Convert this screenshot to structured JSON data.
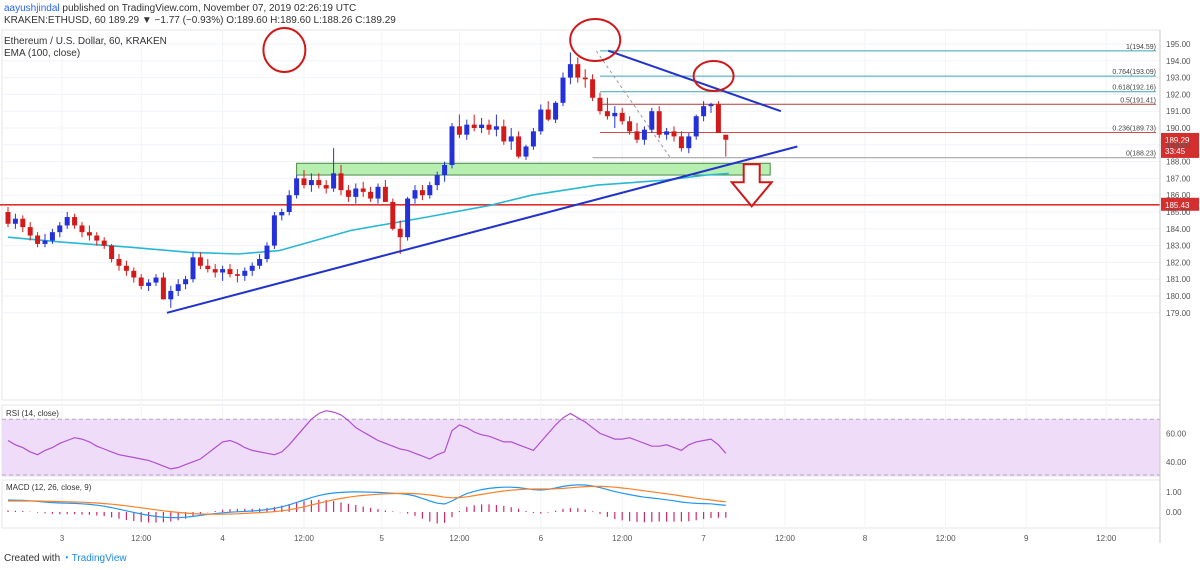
{
  "header": {
    "user": "aayushjindal",
    "published": "published on TradingView.com, November 07, 2019 02:26:19 UTC",
    "ticker": "KRAKEN:ETHUSD, 60",
    "change": "189.29 ▼ −1.77 (−0.93%)",
    "ohlc": "O:189.60 H:189.60 L:188.26 C:189.29"
  },
  "legend": {
    "title": "Ethereum / U.S. Dollar, 60, KRAKEN",
    "ema": "EMA (100, close)"
  },
  "footer": {
    "created_with": "Created with",
    "brand": "TradingView"
  },
  "colors": {
    "up": "#2431d9",
    "down": "#d21a1a",
    "ema": "#27b8d6",
    "trendline": "#2233cc",
    "support_zone": "#b7efb1",
    "horizontal": "#e03030",
    "rsi_band": "#efdcf9",
    "rsi_line": "#b14fd1",
    "macd": "#2196f3",
    "signal": "#ff7f27"
  },
  "chart_data": [
    {
      "type": "candlestick",
      "title": "Ethereum / U.S. Dollar, 60, KRAKEN",
      "ylim": [
        178,
        195.6
      ],
      "y_ticks": [
        "195.00",
        "194.00",
        "193.00",
        "192.00",
        "191.00",
        "190.00",
        "189.00",
        "188.00",
        "187.00",
        "186.00",
        "185.00",
        "184.00",
        "183.00",
        "182.00",
        "181.00",
        "180.00",
        "179.00"
      ],
      "x_ticks": [
        "3",
        "12:00",
        "4",
        "12:00",
        "5",
        "12:00",
        "6",
        "12:00",
        "7",
        "12:00",
        "8",
        "12:00",
        "9",
        "12:00"
      ],
      "ohlc": [
        [
          185.0,
          185.3,
          184.1,
          184.3
        ],
        [
          184.3,
          184.9,
          184.0,
          184.6
        ],
        [
          184.6,
          184.8,
          183.8,
          184.1
        ],
        [
          184.1,
          184.4,
          183.3,
          183.6
        ],
        [
          183.6,
          183.8,
          182.9,
          183.1
        ],
        [
          183.1,
          183.7,
          182.9,
          183.3
        ],
        [
          183.3,
          184.0,
          183.1,
          183.8
        ],
        [
          183.8,
          184.4,
          183.5,
          184.2
        ],
        [
          184.2,
          185.0,
          184.0,
          184.7
        ],
        [
          184.7,
          184.9,
          184.0,
          184.2
        ],
        [
          184.2,
          184.4,
          183.5,
          183.8
        ],
        [
          183.8,
          184.2,
          183.3,
          183.6
        ],
        [
          183.6,
          183.8,
          183.0,
          183.3
        ],
        [
          183.3,
          183.5,
          182.8,
          183.0
        ],
        [
          183.0,
          183.1,
          182.0,
          182.2
        ],
        [
          182.2,
          182.5,
          181.5,
          181.8
        ],
        [
          181.8,
          182.1,
          181.2,
          181.5
        ],
        [
          181.5,
          181.7,
          180.8,
          181.1
        ],
        [
          181.1,
          181.3,
          180.4,
          180.6
        ],
        [
          180.6,
          181.0,
          180.3,
          180.8
        ],
        [
          180.8,
          181.3,
          180.6,
          181.1
        ],
        [
          181.1,
          181.4,
          179.8,
          179.8
        ],
        [
          179.8,
          180.6,
          179.3,
          180.3
        ],
        [
          180.3,
          181.0,
          180.0,
          180.7
        ],
        [
          180.7,
          181.2,
          180.4,
          181.0
        ],
        [
          181.0,
          182.6,
          180.8,
          182.3
        ],
        [
          182.3,
          182.6,
          181.6,
          181.8
        ],
        [
          181.8,
          182.2,
          181.4,
          181.6
        ],
        [
          181.6,
          181.9,
          181.1,
          181.4
        ],
        [
          181.4,
          181.8,
          180.9,
          181.6
        ],
        [
          181.6,
          181.9,
          181.1,
          181.3
        ],
        [
          181.3,
          181.6,
          180.8,
          181.2
        ],
        [
          181.2,
          181.7,
          180.9,
          181.5
        ],
        [
          181.5,
          182.0,
          181.2,
          181.8
        ],
        [
          181.8,
          182.5,
          181.6,
          182.2
        ],
        [
          182.2,
          183.2,
          182.0,
          183.0
        ],
        [
          183.0,
          185.0,
          182.8,
          184.8
        ],
        [
          184.8,
          185.2,
          184.5,
          185.0
        ],
        [
          185.0,
          186.3,
          184.8,
          186.0
        ],
        [
          186.0,
          187.2,
          185.8,
          187.0
        ],
        [
          187.0,
          187.5,
          186.4,
          186.6
        ],
        [
          186.6,
          187.3,
          186.2,
          186.9
        ],
        [
          186.9,
          187.3,
          186.4,
          186.6
        ],
        [
          186.6,
          186.9,
          186.1,
          186.4
        ],
        [
          186.4,
          188.8,
          186.2,
          187.3
        ],
        [
          187.3,
          187.8,
          186.0,
          186.3
        ],
        [
          186.3,
          186.6,
          185.6,
          185.9
        ],
        [
          185.9,
          186.7,
          185.5,
          186.4
        ],
        [
          186.4,
          186.8,
          185.9,
          186.2
        ],
        [
          186.2,
          186.5,
          185.6,
          185.8
        ],
        [
          185.8,
          186.7,
          185.5,
          186.5
        ],
        [
          186.5,
          186.9,
          185.6,
          185.6
        ],
        [
          185.6,
          185.8,
          183.9,
          184.0
        ],
        [
          184.0,
          184.5,
          182.5,
          183.5
        ],
        [
          183.5,
          185.9,
          183.3,
          185.8
        ],
        [
          185.8,
          186.6,
          185.5,
          186.3
        ],
        [
          186.3,
          186.6,
          185.7,
          186.0
        ],
        [
          186.0,
          186.8,
          185.8,
          186.6
        ],
        [
          186.6,
          187.4,
          186.3,
          187.2
        ],
        [
          187.2,
          188.0,
          186.8,
          187.8
        ],
        [
          187.8,
          190.3,
          187.6,
          190.1
        ],
        [
          190.1,
          190.8,
          189.4,
          189.6
        ],
        [
          189.6,
          190.5,
          189.3,
          190.2
        ],
        [
          190.2,
          190.8,
          189.8,
          190.0
        ],
        [
          190.0,
          190.6,
          189.7,
          190.2
        ],
        [
          190.2,
          190.5,
          189.6,
          189.9
        ],
        [
          189.9,
          190.8,
          189.5,
          190.1
        ],
        [
          190.1,
          190.5,
          189.0,
          189.2
        ],
        [
          189.2,
          190.0,
          188.7,
          189.5
        ],
        [
          189.5,
          189.8,
          188.2,
          188.3
        ],
        [
          188.3,
          189.0,
          188.1,
          188.9
        ],
        [
          188.9,
          190.0,
          188.7,
          189.8
        ],
        [
          189.8,
          191.4,
          189.6,
          191.1
        ],
        [
          191.1,
          191.6,
          190.4,
          190.5
        ],
        [
          190.5,
          191.6,
          190.3,
          191.5
        ],
        [
          191.5,
          193.3,
          191.3,
          193.0
        ],
        [
          193.0,
          194.5,
          192.6,
          193.8
        ],
        [
          193.8,
          194.2,
          192.7,
          193.0
        ],
        [
          193.0,
          193.5,
          192.4,
          192.9
        ],
        [
          192.9,
          193.2,
          191.6,
          191.8
        ],
        [
          191.8,
          192.1,
          190.8,
          191.0
        ],
        [
          191.0,
          191.8,
          190.5,
          190.7
        ],
        [
          190.7,
          191.3,
          190.0,
          190.9
        ],
        [
          190.9,
          191.2,
          190.2,
          190.4
        ],
        [
          190.4,
          190.7,
          189.6,
          189.8
        ],
        [
          189.8,
          190.3,
          189.1,
          189.3
        ],
        [
          189.3,
          190.1,
          189.0,
          189.9
        ],
        [
          189.9,
          191.2,
          189.7,
          191.0
        ],
        [
          191.0,
          191.3,
          189.4,
          189.6
        ],
        [
          189.6,
          190.0,
          189.3,
          189.8
        ],
        [
          189.8,
          190.1,
          189.2,
          189.5
        ],
        [
          189.5,
          189.8,
          188.6,
          188.8
        ],
        [
          188.8,
          189.7,
          188.5,
          189.5
        ],
        [
          189.5,
          190.8,
          189.3,
          190.7
        ],
        [
          190.7,
          191.6,
          190.4,
          191.3
        ],
        [
          191.3,
          191.5,
          190.9,
          191.4
        ],
        [
          191.4,
          191.6,
          189.7,
          189.7
        ],
        [
          189.6,
          189.6,
          188.3,
          189.3
        ]
      ],
      "ema_100": [
        [
          0,
          183.5
        ],
        [
          20,
          183.2
        ],
        [
          45,
          182.9
        ],
        [
          66,
          182.6
        ],
        [
          84,
          182.5
        ],
        [
          99,
          182.7
        ],
        [
          125,
          183.9
        ],
        [
          153,
          184.7
        ],
        [
          176,
          185.4
        ],
        [
          191,
          186.0
        ],
        [
          215,
          186.6
        ],
        [
          240,
          186.9
        ],
        [
          255,
          187.2
        ],
        [
          263,
          187.3
        ]
      ],
      "trendlines": [
        {
          "from": [
            58,
            179.0
          ],
          "to": [
            288,
            188.9
          ]
        },
        {
          "from": [
            219,
            194.6
          ],
          "to": [
            282,
            191.0
          ]
        }
      ],
      "support_zone": [
        187.2,
        187.9
      ],
      "horizontal_level": {
        "value": 185.43,
        "label": "185.43"
      },
      "price_tag": {
        "value": 189.29,
        "label": "189.29",
        "countdown": "33:45"
      },
      "fibonacci": [
        {
          "ratio": "1",
          "label": "1(194.59)",
          "value": 194.59
        },
        {
          "ratio": "0.764",
          "label": "0.764(193.09)",
          "value": 193.09
        },
        {
          "ratio": "0.618",
          "label": "0.618(192.16)",
          "value": 192.16
        },
        {
          "ratio": "0.5",
          "label": "0.5(191.41)",
          "value": 191.41
        },
        {
          "ratio": "0.236",
          "label": "0.236(189.73)",
          "value": 189.73
        },
        {
          "ratio": "0",
          "label": "0(188.23)",
          "value": 188.23
        }
      ]
    },
    {
      "type": "line",
      "title": "RSI (14, close)",
      "ylim": [
        30,
        80
      ],
      "y_ticks": [
        "60.00",
        "40.00"
      ],
      "band": [
        30,
        70
      ],
      "values": [
        55,
        52,
        50,
        47,
        45,
        48,
        50,
        53,
        55,
        57,
        56,
        54,
        51,
        49,
        47,
        45,
        44,
        43,
        42,
        41,
        39,
        37,
        35,
        36,
        38,
        40,
        42,
        46,
        50,
        54,
        55,
        53,
        50,
        48,
        47,
        46,
        45,
        47,
        52,
        58,
        64,
        70,
        74,
        76,
        75,
        73,
        69,
        64,
        61,
        58,
        55,
        53,
        51,
        49,
        48,
        46,
        44,
        42,
        45,
        47,
        62,
        66,
        64,
        61,
        59,
        58,
        56,
        54,
        54,
        52,
        50,
        48,
        54,
        60,
        66,
        71,
        74,
        71,
        68,
        64,
        60,
        58,
        56,
        56,
        57,
        55,
        53,
        51,
        51,
        52,
        50,
        48,
        52,
        54,
        55,
        56,
        52,
        46
      ]
    },
    {
      "type": "line",
      "title": "MACD (12, 26, close, 9)",
      "ylim": [
        -0.8,
        1.6
      ],
      "y_ticks": [
        "1.00",
        "0.00"
      ],
      "series": [
        {
          "name": "MACD",
          "values": [
            0.6,
            0.59,
            0.58,
            0.56,
            0.53,
            0.5,
            0.47,
            0.45,
            0.44,
            0.43,
            0.41,
            0.38,
            0.34,
            0.29,
            0.22,
            0.14,
            0.06,
            -0.02,
            -0.1,
            -0.17,
            -0.22,
            -0.26,
            -0.28,
            -0.28,
            -0.26,
            -0.22,
            -0.17,
            -0.12,
            -0.08,
            -0.04,
            -0.01,
            0.01,
            0.03,
            0.05,
            0.08,
            0.12,
            0.18,
            0.26,
            0.36,
            0.48,
            0.6,
            0.72,
            0.82,
            0.9,
            0.95,
            0.98,
            1.0,
            1.01,
            1.0,
            0.99,
            0.98,
            0.96,
            0.94,
            0.92,
            0.88,
            0.8,
            0.68,
            0.55,
            0.44,
            0.4,
            0.55,
            0.75,
            0.92,
            1.03,
            1.12,
            1.18,
            1.22,
            1.24,
            1.24,
            1.22,
            1.17,
            1.12,
            1.1,
            1.13,
            1.2,
            1.28,
            1.33,
            1.36,
            1.35,
            1.3,
            1.22,
            1.12,
            1.02,
            0.94,
            0.87,
            0.8,
            0.74,
            0.7,
            0.66,
            0.61,
            0.56,
            0.5,
            0.46,
            0.43,
            0.42,
            0.41,
            0.37,
            0.33
          ]
        },
        {
          "name": "Signal",
          "values": [
            0.55,
            0.55,
            0.55,
            0.55,
            0.55,
            0.54,
            0.53,
            0.52,
            0.51,
            0.5,
            0.49,
            0.47,
            0.45,
            0.42,
            0.39,
            0.35,
            0.31,
            0.26,
            0.21,
            0.16,
            0.11,
            0.06,
            0.02,
            -0.02,
            -0.05,
            -0.08,
            -0.1,
            -0.11,
            -0.11,
            -0.11,
            -0.1,
            -0.09,
            -0.07,
            -0.05,
            -0.03,
            -0.01,
            0.02,
            0.06,
            0.11,
            0.18,
            0.26,
            0.35,
            0.44,
            0.53,
            0.61,
            0.68,
            0.74,
            0.79,
            0.83,
            0.86,
            0.89,
            0.91,
            0.92,
            0.93,
            0.93,
            0.92,
            0.89,
            0.85,
            0.8,
            0.74,
            0.71,
            0.72,
            0.76,
            0.82,
            0.88,
            0.94,
            1.0,
            1.05,
            1.09,
            1.12,
            1.14,
            1.15,
            1.15,
            1.15,
            1.16,
            1.18,
            1.21,
            1.24,
            1.27,
            1.28,
            1.28,
            1.27,
            1.24,
            1.2,
            1.16,
            1.11,
            1.06,
            1.01,
            0.96,
            0.91,
            0.86,
            0.8,
            0.75,
            0.69,
            0.64,
            0.6,
            0.55,
            0.51
          ]
        }
      ]
    }
  ]
}
